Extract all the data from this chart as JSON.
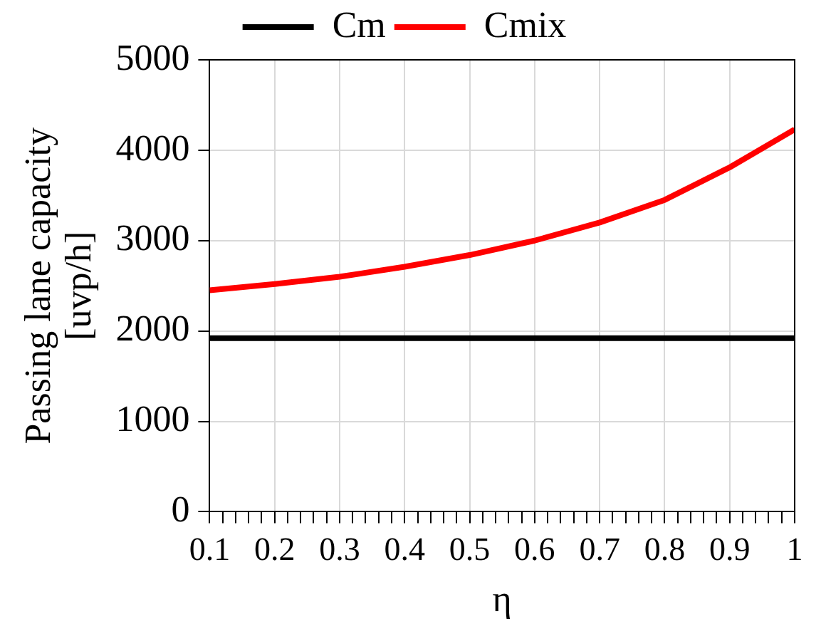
{
  "chart_data": {
    "type": "line",
    "xlabel": "η",
    "ylabel": "Passing lane capacity [uvp/h]",
    "x": [
      0.1,
      0.2,
      0.3,
      0.4,
      0.5,
      0.6,
      0.7,
      0.8,
      0.9,
      1
    ],
    "series": [
      {
        "name": "Cm",
        "color": "#000000",
        "values": [
          1920,
          1920,
          1920,
          1920,
          1920,
          1920,
          1920,
          1920,
          1920,
          1920
        ]
      },
      {
        "name": "Cmix",
        "color": "#ff0000",
        "values": [
          2450,
          2520,
          2600,
          2710,
          2840,
          3000,
          3200,
          3450,
          3810,
          4230
        ]
      }
    ],
    "xlim": [
      0.1,
      1
    ],
    "xticks": [
      0.1,
      {
        "value": 0.12,
        "label": null
      },
      {
        "value": 0.14,
        "label": null
      },
      {
        "value": 0.16,
        "label": null
      },
      {
        "value": 0.18,
        "label": null
      },
      0.2,
      {
        "value": 0.22,
        "label": null
      },
      {
        "value": 0.24,
        "label": null
      },
      {
        "value": 0.26,
        "label": null
      },
      {
        "value": 0.28,
        "label": null
      },
      0.3,
      {
        "value": 0.32,
        "label": null
      },
      {
        "value": 0.34,
        "label": null
      },
      {
        "value": 0.36,
        "label": null
      },
      {
        "value": 0.38,
        "label": null
      },
      0.4,
      {
        "value": 0.42,
        "label": null
      },
      {
        "value": 0.44,
        "label": null
      },
      {
        "value": 0.46,
        "label": null
      },
      {
        "value": 0.48,
        "label": null
      },
      0.5,
      {
        "value": 0.52,
        "label": null
      },
      {
        "value": 0.54,
        "label": null
      },
      {
        "value": 0.56,
        "label": null
      },
      {
        "value": 0.58,
        "label": null
      },
      0.6,
      {
        "value": 0.62,
        "label": null
      },
      {
        "value": 0.64,
        "label": null
      },
      {
        "value": 0.66,
        "label": null
      },
      {
        "value": 0.68,
        "label": null
      },
      0.7,
      {
        "value": 0.72,
        "label": null
      },
      {
        "value": 0.74,
        "label": null
      },
      {
        "value": 0.76,
        "label": null
      },
      {
        "value": 0.78,
        "label": null
      },
      0.8,
      {
        "value": 0.82,
        "label": null
      },
      {
        "value": 0.84,
        "label": null
      },
      {
        "value": 0.86,
        "label": null
      },
      {
        "value": 0.88,
        "label": null
      },
      0.9,
      {
        "value": 0.92,
        "label": null
      },
      {
        "value": 0.94,
        "label": null
      },
      {
        "value": 0.96,
        "label": null
      },
      {
        "value": 0.98,
        "label": null
      },
      1
    ],
    "ylim": [
      0,
      5000
    ],
    "yticks": [
      0,
      1000,
      2000,
      3000,
      4000,
      5000
    ],
    "grid": true,
    "legend": "top",
    "marker": "none",
    "line_style": "solid"
  }
}
